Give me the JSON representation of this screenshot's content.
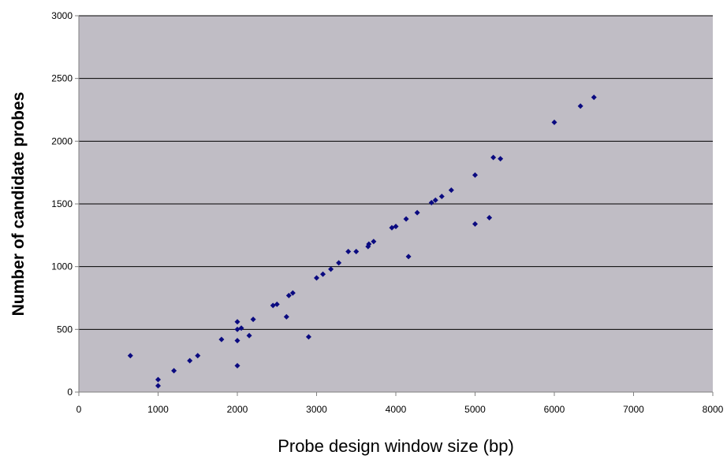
{
  "chart_data": {
    "type": "scatter",
    "title": "",
    "xlabel": "Probe design window size (bp)",
    "ylabel": "Number of candidate probes",
    "xlim": [
      0,
      8000
    ],
    "ylim": [
      0,
      3000
    ],
    "xticks": [
      0,
      1000,
      2000,
      3000,
      4000,
      5000,
      6000,
      7000,
      8000
    ],
    "yticks": [
      0,
      500,
      1000,
      1500,
      2000,
      2500,
      3000
    ],
    "grid": "horizontal major gridlines",
    "legend": "none",
    "colors": {
      "plot_background": "#c0bdc5",
      "point": "#0a0a80",
      "gridline": "#000000"
    },
    "marker": "diamond",
    "series": [
      {
        "points": [
          [
            650,
            290
          ],
          [
            1000,
            100
          ],
          [
            1000,
            50
          ],
          [
            1200,
            170
          ],
          [
            1400,
            250
          ],
          [
            1500,
            290
          ],
          [
            1800,
            420
          ],
          [
            2000,
            560
          ],
          [
            2000,
            500
          ],
          [
            2000,
            410
          ],
          [
            2000,
            210
          ],
          [
            2050,
            510
          ],
          [
            2150,
            450
          ],
          [
            2200,
            580
          ],
          [
            2450,
            690
          ],
          [
            2500,
            700
          ],
          [
            2620,
            600
          ],
          [
            2650,
            770
          ],
          [
            2700,
            790
          ],
          [
            2900,
            440
          ],
          [
            3000,
            910
          ],
          [
            3080,
            940
          ],
          [
            3180,
            980
          ],
          [
            3280,
            1030
          ],
          [
            3400,
            1120
          ],
          [
            3500,
            1120
          ],
          [
            3650,
            1160
          ],
          [
            3660,
            1180
          ],
          [
            3720,
            1200
          ],
          [
            3950,
            1310
          ],
          [
            4000,
            1320
          ],
          [
            4130,
            1380
          ],
          [
            4160,
            1080
          ],
          [
            4270,
            1430
          ],
          [
            4450,
            1510
          ],
          [
            4500,
            1530
          ],
          [
            4580,
            1560
          ],
          [
            4700,
            1610
          ],
          [
            5000,
            1730
          ],
          [
            5000,
            1340
          ],
          [
            5180,
            1390
          ],
          [
            5230,
            1870
          ],
          [
            5320,
            1860
          ],
          [
            6000,
            2150
          ],
          [
            6330,
            2280
          ],
          [
            6500,
            2350
          ]
        ]
      }
    ]
  }
}
